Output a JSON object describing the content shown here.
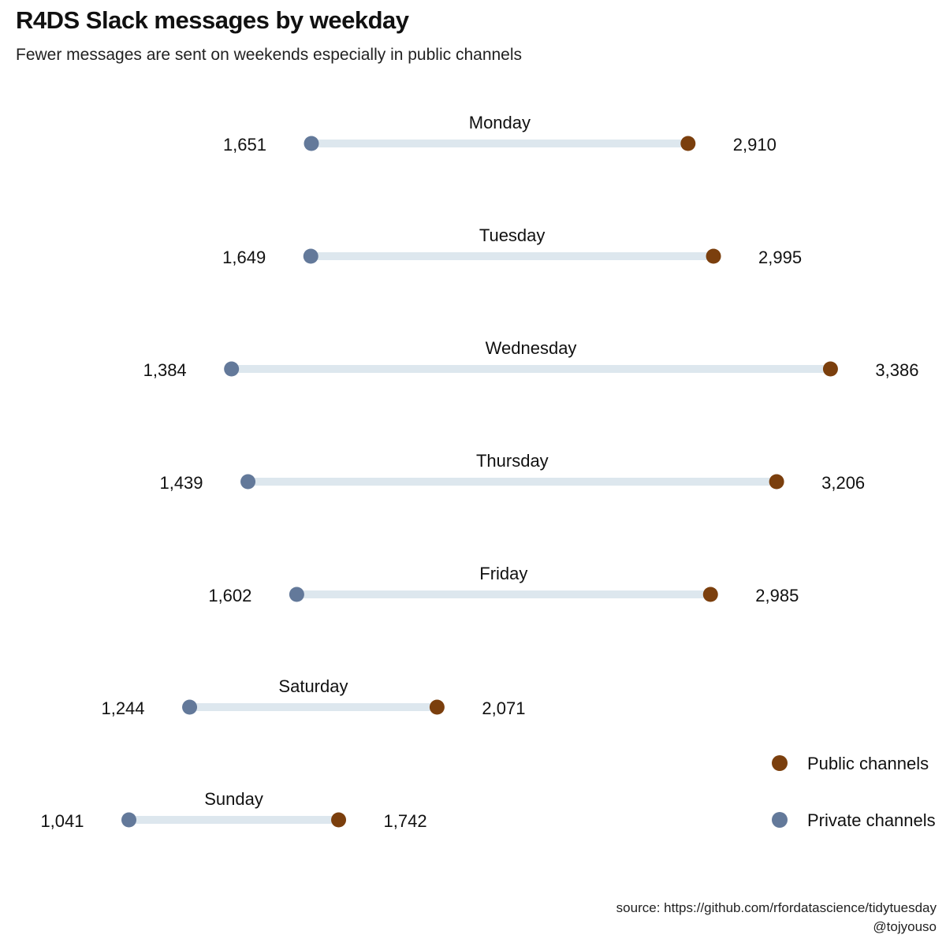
{
  "title": "R4DS Slack messages by weekday",
  "subtitle": "Fewer messages are sent on weekends especially in public channels",
  "caption": {
    "source": "source: https://github.com/rfordatascience/tidytuesday",
    "author": "@tojyouso"
  },
  "colors": {
    "public": "#7b3f0d",
    "private": "#63799a",
    "segment": "#dde7ee"
  },
  "chart_data": {
    "type": "dumbbell",
    "title": "R4DS Slack messages by weekday",
    "subtitle": "Fewer messages are sent on weekends especially in public channels",
    "xlim": [
      850,
      3650
    ],
    "grid": false,
    "legend_position": "bottom-right",
    "categories": [
      "Monday",
      "Tuesday",
      "Wednesday",
      "Thursday",
      "Friday",
      "Saturday",
      "Sunday"
    ],
    "series": [
      {
        "name": "Public channels",
        "values": [
          2910,
          2995,
          3386,
          3206,
          2985,
          2071,
          1742
        ]
      },
      {
        "name": "Private channels",
        "values": [
          1651,
          1649,
          1384,
          1439,
          1602,
          1244,
          1041
        ]
      }
    ],
    "value_labels": {
      "public": [
        "2,910",
        "2,995",
        "3,386",
        "3,206",
        "2,985",
        "2,071",
        "1,742"
      ],
      "private": [
        "1,651",
        "1,649",
        "1,384",
        "1,439",
        "1,602",
        "1,244",
        "1,041"
      ]
    }
  }
}
